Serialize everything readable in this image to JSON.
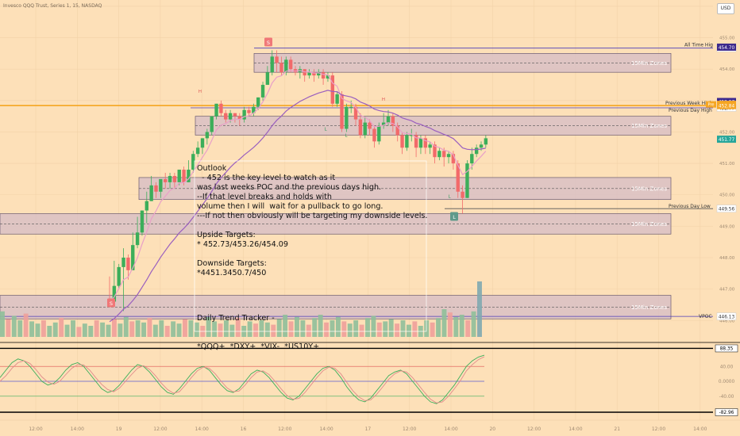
{
  "header": {
    "symbol_text": "Invesco QQQ Trust, Series 1, 15, NASDAQ"
  },
  "currency": "USD",
  "chart_data": {
    "type": "candlestick",
    "title": "Invesco QQQ Trust, Series 1, 15, NASDAQ",
    "ylim": [
      445.3,
      456.1
    ],
    "price_ticks": [
      446.0,
      447.0,
      448.0,
      449.0,
      450.0,
      451.0,
      452.0,
      453.0,
      454.0,
      455.0,
      456.0
    ],
    "time_ticks": [
      "12:00",
      "14:00",
      "19",
      "12:00",
      "14:00",
      "16",
      "12:00",
      "14:00",
      "17",
      "12:00",
      "14:00",
      "20",
      "12:00",
      "14:00",
      "21",
      "12:00",
      "14:00"
    ],
    "zones": [
      {
        "label": "15Min Zones",
        "low": 453.9,
        "high": 454.5
      },
      {
        "label": "15Min Zones",
        "low": 451.9,
        "high": 452.5
      },
      {
        "label": "15Min Zones",
        "low": 449.85,
        "high": 450.55
      },
      {
        "label": "15Min Zones",
        "low": 448.75,
        "high": 449.4
      },
      {
        "label": "15Min Zones",
        "low": 446.05,
        "high": 446.8
      }
    ],
    "levels": [
      {
        "label": "All Time High",
        "price": 454.67,
        "badge": "454.67"
      },
      {
        "label": "Previous Week High",
        "price": 452.84,
        "badge": ""
      },
      {
        "label": "Previous Day High",
        "price": 452.77,
        "badge": "452.77"
      },
      {
        "label": "Previous Day Low",
        "price": 449.56,
        "badge": "449.56"
      },
      {
        "label": "VPOC",
        "price": 446.13,
        "badge": "446.13"
      }
    ],
    "price_badges": [
      {
        "text": "454.70",
        "price": 454.7,
        "color": "#3d2a8c"
      },
      {
        "text": "452.97",
        "price": 452.97,
        "color": "#3d2a8c"
      },
      {
        "text": "452.88",
        "price": 452.88,
        "color": "#f5a623"
      },
      {
        "text": "452.84",
        "price": 452.84,
        "color": "#f5a623"
      },
      {
        "text": "451.77",
        "price": 451.77,
        "color": "#26a69a"
      }
    ],
    "pre_badge": "Pre",
    "markers": [
      {
        "text": "S",
        "price": 454.85
      },
      {
        "text": "S",
        "price": 446.55
      },
      {
        "text": "L",
        "price": 449.3
      }
    ],
    "annotation_letters": [
      {
        "text": "H",
        "price": 453.25
      },
      {
        "text": "H",
        "price": 453.0
      },
      {
        "text": "L",
        "price": 452.05
      },
      {
        "text": "L",
        "price": 451.85
      },
      {
        "text": "L",
        "price": 449.9
      }
    ],
    "candles": [
      [
        446.7,
        446.6,
        447.4,
        446.5
      ],
      [
        446.6,
        447.1,
        447.9,
        446.6
      ],
      [
        447.1,
        447.7,
        447.8,
        447.0
      ],
      [
        447.7,
        448.0,
        448.3,
        446.3
      ],
      [
        448.0,
        447.6,
        448.1,
        447.3
      ],
      [
        447.6,
        448.4,
        448.8,
        447.6
      ],
      [
        448.4,
        448.8,
        449.3,
        448.3
      ],
      [
        448.8,
        449.5,
        449.5,
        448.7
      ],
      [
        449.5,
        449.8,
        450.1,
        449.1
      ],
      [
        449.8,
        450.3,
        450.6,
        449.8
      ],
      [
        450.3,
        450.1,
        450.4,
        449.9
      ],
      [
        450.1,
        450.5,
        450.5,
        449.9
      ],
      [
        450.5,
        450.4,
        450.7,
        450.2
      ],
      [
        450.4,
        450.6,
        450.7,
        450.2
      ],
      [
        450.6,
        450.4,
        450.7,
        450.2
      ],
      [
        450.4,
        450.8,
        450.8,
        450.3
      ],
      [
        450.8,
        450.4,
        450.9,
        450.3
      ],
      [
        450.4,
        450.8,
        451.1,
        450.4
      ],
      [
        450.8,
        451.3,
        451.4,
        450.7
      ],
      [
        451.3,
        451.5,
        451.7,
        451.2
      ],
      [
        451.5,
        451.8,
        451.8,
        451.3
      ],
      [
        451.8,
        452.0,
        452.1,
        451.6
      ],
      [
        452.0,
        452.5,
        452.5,
        451.9
      ],
      [
        452.5,
        452.9,
        452.9,
        452.4
      ],
      [
        452.9,
        452.6,
        453.0,
        452.5
      ],
      [
        452.6,
        452.4,
        452.7,
        452.3
      ],
      [
        452.4,
        452.6,
        452.7,
        452.3
      ],
      [
        452.6,
        452.5,
        452.6,
        452.3
      ],
      [
        452.5,
        452.4,
        452.6,
        452.2
      ],
      [
        452.4,
        452.7,
        452.8,
        452.3
      ],
      [
        452.7,
        452.6,
        452.8,
        452.5
      ],
      [
        452.6,
        452.8,
        452.9,
        452.5
      ],
      [
        452.8,
        453.1,
        453.1,
        452.7
      ],
      [
        453.1,
        453.5,
        453.6,
        453.0
      ],
      [
        453.5,
        453.9,
        454.1,
        453.5
      ],
      [
        453.9,
        454.4,
        454.6,
        453.8
      ],
      [
        454.4,
        454.2,
        454.6,
        453.9
      ],
      [
        454.2,
        453.9,
        454.4,
        453.8
      ],
      [
        453.9,
        454.3,
        454.4,
        453.8
      ],
      [
        454.3,
        454.0,
        454.4,
        453.9
      ],
      [
        454.0,
        453.9,
        454.1,
        453.8
      ],
      [
        453.9,
        454.0,
        454.1,
        453.7
      ],
      [
        454.0,
        453.8,
        454.0,
        453.6
      ],
      [
        453.8,
        453.9,
        454.0,
        453.7
      ],
      [
        453.9,
        453.8,
        454.0,
        453.6
      ],
      [
        453.8,
        453.9,
        454.0,
        453.7
      ],
      [
        453.9,
        453.7,
        454.0,
        453.5
      ],
      [
        453.7,
        453.8,
        453.9,
        453.6
      ],
      [
        453.8,
        452.9,
        453.9,
        452.8
      ],
      [
        452.9,
        453.2,
        453.3,
        452.8
      ],
      [
        453.2,
        452.1,
        453.3,
        452.0
      ],
      [
        452.1,
        452.8,
        452.9,
        452.0
      ],
      [
        452.8,
        452.8,
        453.0,
        452.6
      ],
      [
        452.8,
        452.4,
        452.9,
        452.2
      ],
      [
        452.4,
        451.9,
        452.6,
        451.8
      ],
      [
        451.9,
        452.3,
        452.5,
        451.8
      ],
      [
        452.3,
        452.1,
        452.4,
        451.9
      ],
      [
        452.1,
        451.7,
        452.2,
        451.5
      ],
      [
        451.7,
        452.2,
        452.3,
        451.6
      ],
      [
        452.2,
        452.3,
        452.6,
        452.1
      ],
      [
        452.3,
        452.5,
        452.7,
        452.2
      ],
      [
        452.5,
        452.2,
        452.6,
        452.0
      ],
      [
        452.2,
        451.9,
        452.3,
        451.7
      ],
      [
        451.9,
        451.5,
        452.0,
        451.3
      ],
      [
        451.5,
        451.9,
        452.0,
        451.4
      ],
      [
        451.9,
        451.9,
        452.1,
        451.7
      ],
      [
        451.9,
        451.5,
        452.0,
        451.2
      ],
      [
        451.5,
        451.8,
        451.9,
        451.3
      ],
      [
        451.8,
        451.5,
        451.9,
        451.3
      ],
      [
        451.5,
        451.6,
        451.7,
        451.3
      ],
      [
        451.6,
        451.2,
        451.7,
        451.0
      ],
      [
        451.2,
        451.4,
        451.5,
        451.1
      ],
      [
        451.4,
        451.2,
        451.5,
        450.9
      ],
      [
        451.2,
        451.3,
        451.4,
        451.0
      ],
      [
        451.3,
        451.0,
        451.4,
        450.8
      ],
      [
        451.0,
        450.1,
        451.1,
        449.9
      ],
      [
        450.1,
        449.9,
        450.3,
        449.4
      ],
      [
        449.9,
        451.0,
        451.1,
        449.9
      ],
      [
        451.0,
        451.3,
        451.5,
        450.8
      ],
      [
        451.3,
        451.5,
        451.6,
        451.2
      ],
      [
        451.5,
        451.6,
        451.7,
        451.4
      ],
      [
        451.6,
        451.8,
        451.9,
        451.5
      ]
    ],
    "volume": [
      0.46,
      0.32,
      0.38,
      0.3,
      0.42,
      0.28,
      0.24,
      0.3,
      0.2,
      0.26,
      0.34,
      0.22,
      0.3,
      0.18,
      0.24,
      0.2,
      0.3,
      0.26,
      0.22,
      0.32,
      0.24,
      0.36,
      0.28,
      0.3,
      0.26,
      0.34,
      0.22,
      0.3,
      0.2,
      0.28,
      0.24,
      0.32,
      0.3,
      0.26,
      0.2,
      0.36,
      0.28,
      0.24,
      0.3,
      0.22,
      0.34,
      0.2,
      0.28,
      0.24,
      0.3,
      0.26,
      0.22,
      0.32,
      0.4,
      0.28,
      0.36,
      0.3,
      0.22,
      0.34,
      0.4,
      0.26,
      0.3,
      0.36,
      0.28,
      0.24,
      0.3,
      0.22,
      0.34,
      0.38,
      0.26,
      0.28,
      0.32,
      0.24,
      0.3,
      0.22,
      0.28,
      0.2,
      0.3,
      0.26,
      0.34,
      0.5,
      0.44,
      0.36,
      0.4,
      0.3,
      0.46,
      1.0
    ],
    "oscillator": {
      "ylim": [
        -100,
        100
      ],
      "labels": [
        {
          "text": "88.35",
          "value": 88.35
        },
        {
          "text": "40.00",
          "value": 40
        },
        {
          "text": "0.0000",
          "value": 0
        },
        {
          "text": "-40.00",
          "value": -40
        },
        {
          "text": "-82.96",
          "value": -82.96
        }
      ],
      "line_a": [
        10,
        30,
        50,
        60,
        55,
        40,
        20,
        0,
        -10,
        -5,
        10,
        30,
        45,
        50,
        40,
        20,
        0,
        -20,
        -30,
        -25,
        -10,
        10,
        30,
        45,
        40,
        25,
        5,
        -15,
        -30,
        -35,
        -20,
        0,
        20,
        35,
        40,
        30,
        10,
        -10,
        -25,
        -30,
        -20,
        0,
        20,
        30,
        25,
        10,
        -10,
        -30,
        -45,
        -50,
        -40,
        -20,
        0,
        20,
        35,
        40,
        30,
        10,
        -15,
        -35,
        -50,
        -55,
        -45,
        -25,
        -5,
        15,
        25,
        30,
        20,
        0,
        -20,
        -40,
        -55,
        -60,
        -50,
        -30,
        -10,
        15,
        40,
        55,
        65,
        70
      ],
      "line_b": [
        0,
        15,
        35,
        50,
        55,
        48,
        32,
        12,
        -2,
        -8,
        0,
        18,
        35,
        45,
        44,
        30,
        10,
        -8,
        -22,
        -28,
        -18,
        0,
        18,
        35,
        42,
        32,
        15,
        -5,
        -22,
        -32,
        -28,
        -10,
        10,
        28,
        38,
        35,
        20,
        0,
        -18,
        -28,
        -26,
        -10,
        10,
        25,
        28,
        18,
        0,
        -20,
        -38,
        -48,
        -46,
        -30,
        -10,
        10,
        28,
        38,
        35,
        20,
        -3,
        -25,
        -42,
        -52,
        -50,
        -35,
        -15,
        5,
        20,
        28,
        25,
        10,
        -10,
        -30,
        -48,
        -58,
        -55,
        -40,
        -20,
        2,
        28,
        45,
        58,
        66
      ]
    }
  },
  "note": {
    "lines": [
      "Outlook",
      "  - 452 is the key level to watch as it",
      "was last weeks POC and the previous days high.",
      "--If that level breaks and holds with",
      "volume then I will  wait for a pullback to go long.",
      "---If not then obviously will be targeting my downside levels.",
      "",
      "Upside Targets:",
      "* 452.73/453.26/454.09",
      "",
      "Downside Targets:",
      "*4451.3450.7/450"
    ]
  },
  "tracker": {
    "title": "Daily Trend Tracker -",
    "items": "*QQQ+  *DXY+  *VIX-  *US10Y+"
  }
}
